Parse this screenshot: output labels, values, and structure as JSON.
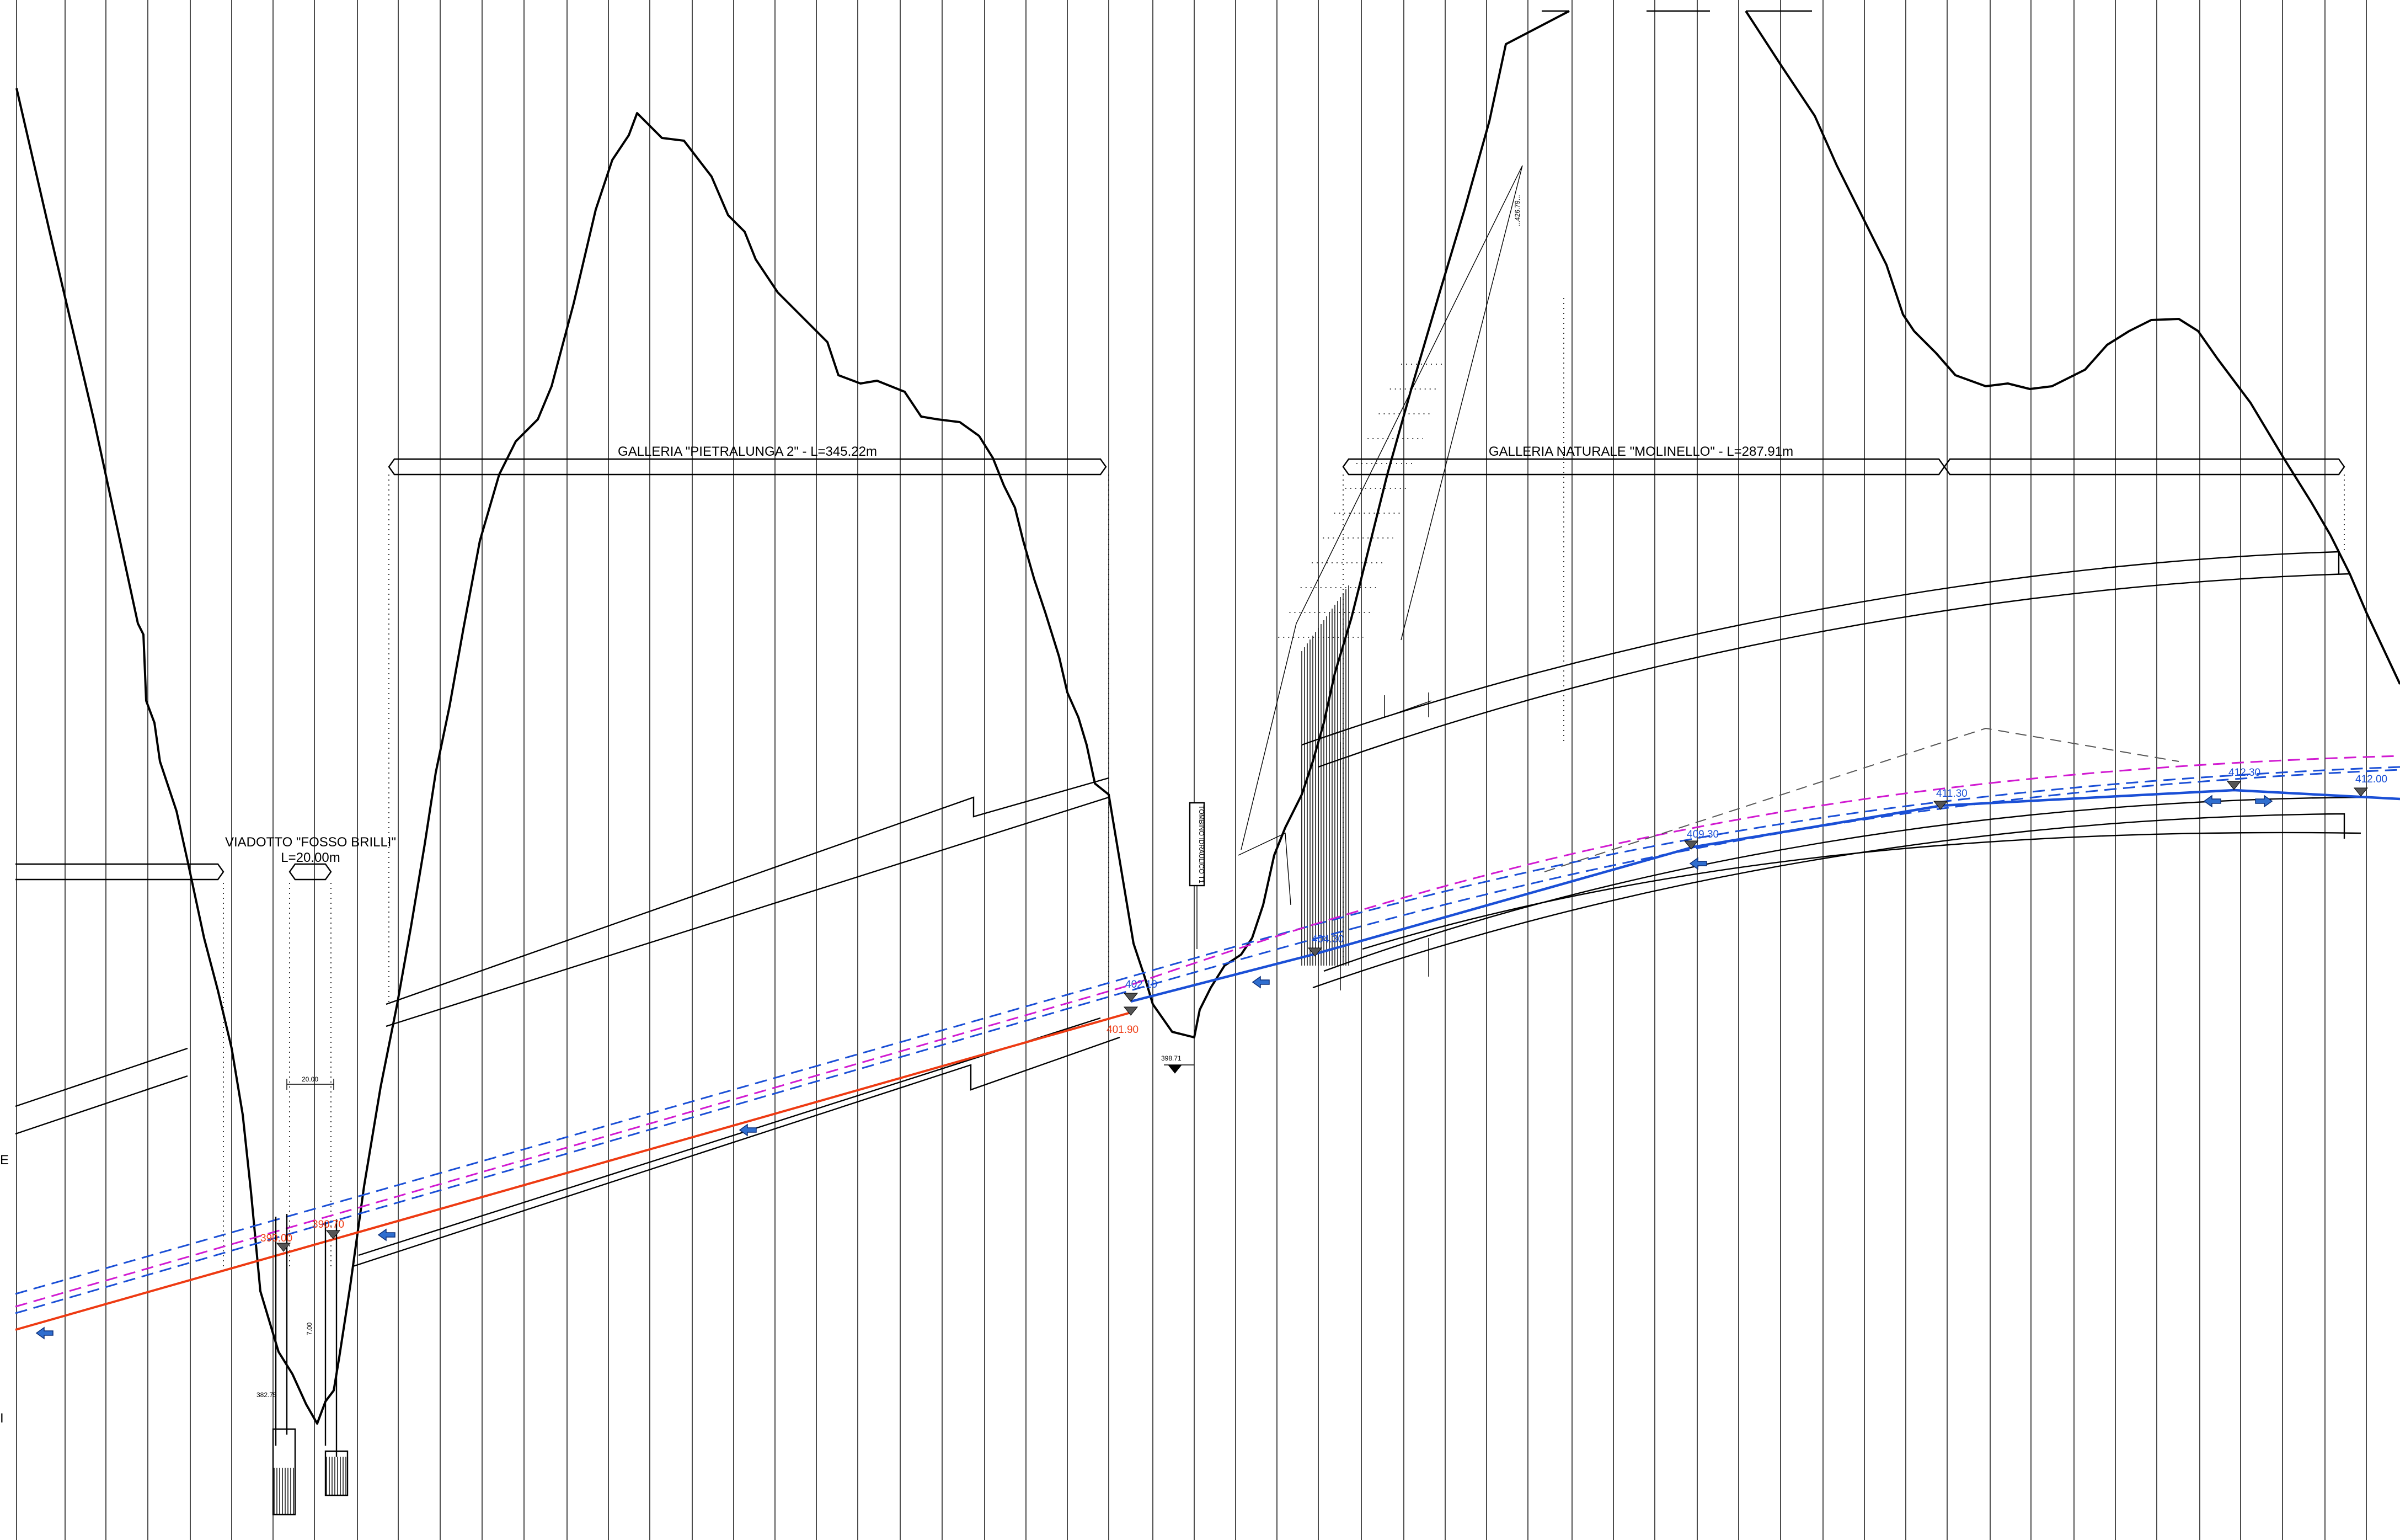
{
  "labels": {
    "galleria_pietralunga": "GALLERIA \"PIETRALUNGA 2\" - L=345.22m",
    "galleria_molinello": "GALLERIA NATURALE \"MOLINELLO\" - L=287.91m",
    "viadotto_title": "VIADOTTO \"FOSSO BRILLI\"",
    "viadotto_length": "L=20.00m",
    "tombino": "TOMBINO IDRAULICO T1",
    "edge_e": "E",
    "edge_i": "I"
  },
  "elevations": {
    "e390_00": "390.00",
    "e390_70": "390.70",
    "e402_10": "402.10",
    "e401_90": "401.90",
    "e404_30": "404.30",
    "e409_30": "409.30",
    "e411_30": "411.30",
    "e412_30": "412.30",
    "e412_00": "412.00",
    "e398_71": "398.71",
    "e382_75": "382.75",
    "dim_20": "20.00",
    "dim_7": "7.00",
    "top_note": "...426.79..."
  },
  "colors": {
    "design_orange": "#ee3a12",
    "design_blue": "#1a4fd6",
    "offset_magenta": "#d11ad1",
    "drawing": "#000000"
  }
}
